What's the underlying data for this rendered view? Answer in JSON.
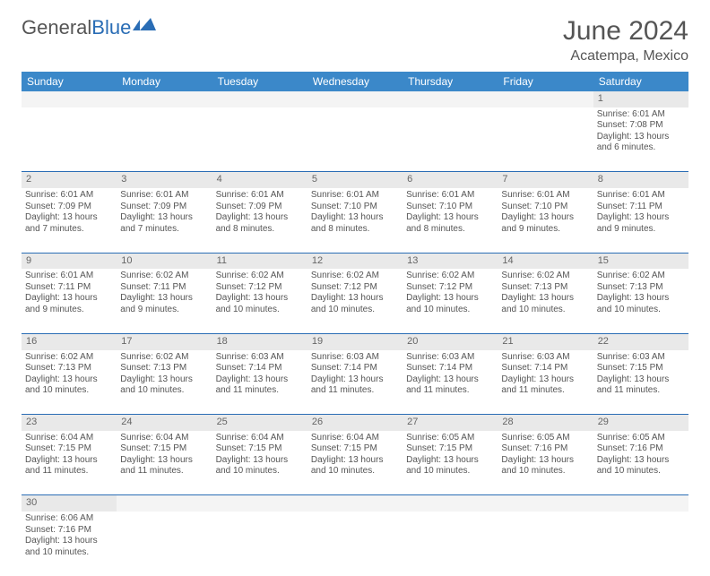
{
  "logo": {
    "general": "General",
    "blue": "Blue"
  },
  "title": "June 2024",
  "location": "Acatempa, Mexico",
  "colors": {
    "header_bg": "#3b88c9",
    "header_fg": "#ffffff",
    "daynum_bg": "#e9e9e9",
    "text": "#555555",
    "accent": "#2a6db5"
  },
  "dayHeaders": [
    "Sunday",
    "Monday",
    "Tuesday",
    "Wednesday",
    "Thursday",
    "Friday",
    "Saturday"
  ],
  "weeks": [
    {
      "nums": [
        "",
        "",
        "",
        "",
        "",
        "",
        "1"
      ],
      "cells": [
        null,
        null,
        null,
        null,
        null,
        null,
        {
          "sunrise": "Sunrise: 6:01 AM",
          "sunset": "Sunset: 7:08 PM",
          "dl1": "Daylight: 13 hours",
          "dl2": "and 6 minutes."
        }
      ]
    },
    {
      "nums": [
        "2",
        "3",
        "4",
        "5",
        "6",
        "7",
        "8"
      ],
      "cells": [
        {
          "sunrise": "Sunrise: 6:01 AM",
          "sunset": "Sunset: 7:09 PM",
          "dl1": "Daylight: 13 hours",
          "dl2": "and 7 minutes."
        },
        {
          "sunrise": "Sunrise: 6:01 AM",
          "sunset": "Sunset: 7:09 PM",
          "dl1": "Daylight: 13 hours",
          "dl2": "and 7 minutes."
        },
        {
          "sunrise": "Sunrise: 6:01 AM",
          "sunset": "Sunset: 7:09 PM",
          "dl1": "Daylight: 13 hours",
          "dl2": "and 8 minutes."
        },
        {
          "sunrise": "Sunrise: 6:01 AM",
          "sunset": "Sunset: 7:10 PM",
          "dl1": "Daylight: 13 hours",
          "dl2": "and 8 minutes."
        },
        {
          "sunrise": "Sunrise: 6:01 AM",
          "sunset": "Sunset: 7:10 PM",
          "dl1": "Daylight: 13 hours",
          "dl2": "and 8 minutes."
        },
        {
          "sunrise": "Sunrise: 6:01 AM",
          "sunset": "Sunset: 7:10 PM",
          "dl1": "Daylight: 13 hours",
          "dl2": "and 9 minutes."
        },
        {
          "sunrise": "Sunrise: 6:01 AM",
          "sunset": "Sunset: 7:11 PM",
          "dl1": "Daylight: 13 hours",
          "dl2": "and 9 minutes."
        }
      ]
    },
    {
      "nums": [
        "9",
        "10",
        "11",
        "12",
        "13",
        "14",
        "15"
      ],
      "cells": [
        {
          "sunrise": "Sunrise: 6:01 AM",
          "sunset": "Sunset: 7:11 PM",
          "dl1": "Daylight: 13 hours",
          "dl2": "and 9 minutes."
        },
        {
          "sunrise": "Sunrise: 6:02 AM",
          "sunset": "Sunset: 7:11 PM",
          "dl1": "Daylight: 13 hours",
          "dl2": "and 9 minutes."
        },
        {
          "sunrise": "Sunrise: 6:02 AM",
          "sunset": "Sunset: 7:12 PM",
          "dl1": "Daylight: 13 hours",
          "dl2": "and 10 minutes."
        },
        {
          "sunrise": "Sunrise: 6:02 AM",
          "sunset": "Sunset: 7:12 PM",
          "dl1": "Daylight: 13 hours",
          "dl2": "and 10 minutes."
        },
        {
          "sunrise": "Sunrise: 6:02 AM",
          "sunset": "Sunset: 7:12 PM",
          "dl1": "Daylight: 13 hours",
          "dl2": "and 10 minutes."
        },
        {
          "sunrise": "Sunrise: 6:02 AM",
          "sunset": "Sunset: 7:13 PM",
          "dl1": "Daylight: 13 hours",
          "dl2": "and 10 minutes."
        },
        {
          "sunrise": "Sunrise: 6:02 AM",
          "sunset": "Sunset: 7:13 PM",
          "dl1": "Daylight: 13 hours",
          "dl2": "and 10 minutes."
        }
      ]
    },
    {
      "nums": [
        "16",
        "17",
        "18",
        "19",
        "20",
        "21",
        "22"
      ],
      "cells": [
        {
          "sunrise": "Sunrise: 6:02 AM",
          "sunset": "Sunset: 7:13 PM",
          "dl1": "Daylight: 13 hours",
          "dl2": "and 10 minutes."
        },
        {
          "sunrise": "Sunrise: 6:02 AM",
          "sunset": "Sunset: 7:13 PM",
          "dl1": "Daylight: 13 hours",
          "dl2": "and 10 minutes."
        },
        {
          "sunrise": "Sunrise: 6:03 AM",
          "sunset": "Sunset: 7:14 PM",
          "dl1": "Daylight: 13 hours",
          "dl2": "and 11 minutes."
        },
        {
          "sunrise": "Sunrise: 6:03 AM",
          "sunset": "Sunset: 7:14 PM",
          "dl1": "Daylight: 13 hours",
          "dl2": "and 11 minutes."
        },
        {
          "sunrise": "Sunrise: 6:03 AM",
          "sunset": "Sunset: 7:14 PM",
          "dl1": "Daylight: 13 hours",
          "dl2": "and 11 minutes."
        },
        {
          "sunrise": "Sunrise: 6:03 AM",
          "sunset": "Sunset: 7:14 PM",
          "dl1": "Daylight: 13 hours",
          "dl2": "and 11 minutes."
        },
        {
          "sunrise": "Sunrise: 6:03 AM",
          "sunset": "Sunset: 7:15 PM",
          "dl1": "Daylight: 13 hours",
          "dl2": "and 11 minutes."
        }
      ]
    },
    {
      "nums": [
        "23",
        "24",
        "25",
        "26",
        "27",
        "28",
        "29"
      ],
      "cells": [
        {
          "sunrise": "Sunrise: 6:04 AM",
          "sunset": "Sunset: 7:15 PM",
          "dl1": "Daylight: 13 hours",
          "dl2": "and 11 minutes."
        },
        {
          "sunrise": "Sunrise: 6:04 AM",
          "sunset": "Sunset: 7:15 PM",
          "dl1": "Daylight: 13 hours",
          "dl2": "and 11 minutes."
        },
        {
          "sunrise": "Sunrise: 6:04 AM",
          "sunset": "Sunset: 7:15 PM",
          "dl1": "Daylight: 13 hours",
          "dl2": "and 10 minutes."
        },
        {
          "sunrise": "Sunrise: 6:04 AM",
          "sunset": "Sunset: 7:15 PM",
          "dl1": "Daylight: 13 hours",
          "dl2": "and 10 minutes."
        },
        {
          "sunrise": "Sunrise: 6:05 AM",
          "sunset": "Sunset: 7:15 PM",
          "dl1": "Daylight: 13 hours",
          "dl2": "and 10 minutes."
        },
        {
          "sunrise": "Sunrise: 6:05 AM",
          "sunset": "Sunset: 7:16 PM",
          "dl1": "Daylight: 13 hours",
          "dl2": "and 10 minutes."
        },
        {
          "sunrise": "Sunrise: 6:05 AM",
          "sunset": "Sunset: 7:16 PM",
          "dl1": "Daylight: 13 hours",
          "dl2": "and 10 minutes."
        }
      ]
    },
    {
      "nums": [
        "30",
        "",
        "",
        "",
        "",
        "",
        ""
      ],
      "cells": [
        {
          "sunrise": "Sunrise: 6:06 AM",
          "sunset": "Sunset: 7:16 PM",
          "dl1": "Daylight: 13 hours",
          "dl2": "and 10 minutes."
        },
        null,
        null,
        null,
        null,
        null,
        null
      ]
    }
  ]
}
